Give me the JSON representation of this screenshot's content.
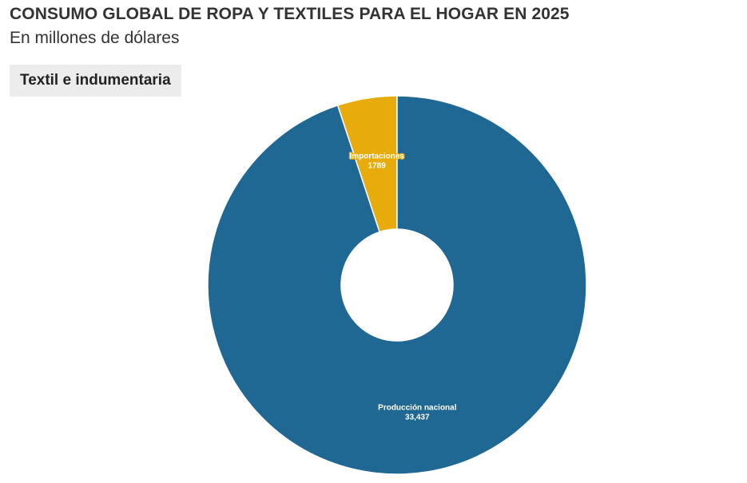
{
  "header": {
    "title": "CONSUMO GLOBAL DE ROPA Y TEXTILES PARA EL HOGAR EN 2025",
    "subtitle": "En millones de dólares"
  },
  "tabs": [
    {
      "label": "Textil e indumentaria",
      "active": true
    }
  ],
  "chart_data": {
    "type": "pie",
    "donut": true,
    "title": "CONSUMO GLOBAL DE ROPA Y TEXTILES PARA EL HOGAR EN 2025",
    "subtitle": "En millones de dólares",
    "categories": [
      "Importaciones",
      "Producción nacional"
    ],
    "values": [
      1789,
      33437
    ],
    "value_labels": [
      "1789",
      "33,437"
    ],
    "colors": [
      "#e8ab0c",
      "#1f6893"
    ],
    "label_stroke_colors": [
      "#e8ab0c",
      "#1f6893"
    ],
    "legend": "none"
  }
}
